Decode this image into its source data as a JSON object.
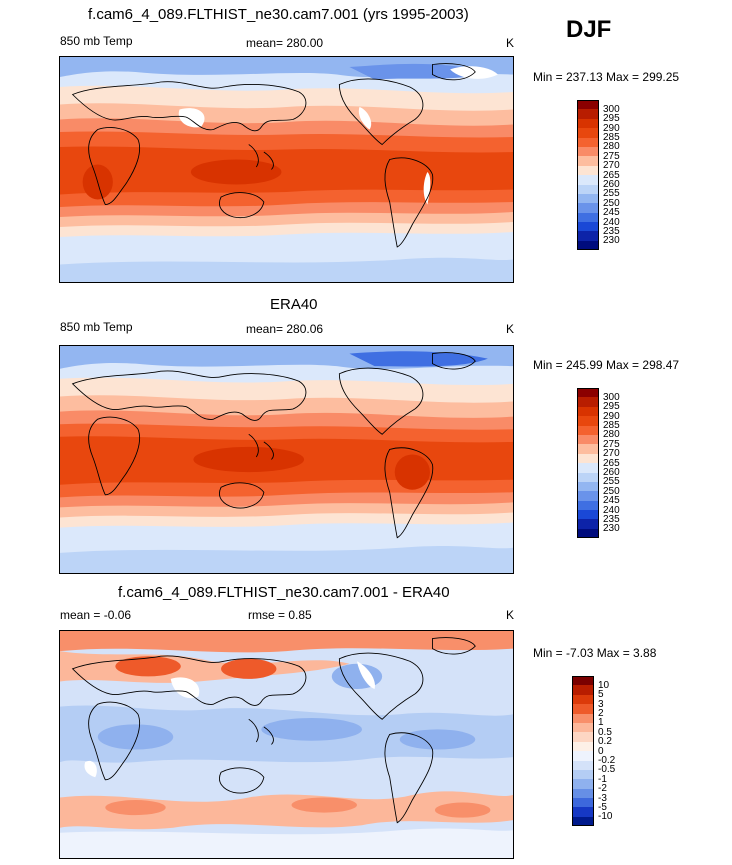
{
  "season": "DJF",
  "panels": [
    {
      "id": "model",
      "title": "f.cam6_4_089.FLTHIST_ne30.cam7.001 (yrs 1995-2003)",
      "left_label": "850 mb Temp",
      "center_label": "mean= 280.00",
      "units": "K",
      "minmax": "Min = 237.13 Max = 299.25",
      "levels": [
        "300",
        "295",
        "290",
        "285",
        "280",
        "275",
        "270",
        "265",
        "260",
        "255",
        "250",
        "245",
        "240",
        "235",
        "230"
      ],
      "colors": [
        "#8b0000",
        "#b81d00",
        "#d83300",
        "#e8470e",
        "#f4622f",
        "#f98b67",
        "#fdbd9f",
        "#fde4d3",
        "#dbe8fb",
        "#bcd4f7",
        "#93b6f1",
        "#6a93ea",
        "#3f6fe2",
        "#1a48d6",
        "#0d23a8",
        "#000c7d"
      ]
    },
    {
      "id": "obs",
      "title": "ERA40",
      "left_label": "850 mb Temp",
      "center_label": "mean= 280.06",
      "units": "K",
      "minmax": "Min = 245.99 Max = 298.47",
      "levels": [
        "300",
        "295",
        "290",
        "285",
        "280",
        "275",
        "270",
        "265",
        "260",
        "255",
        "250",
        "245",
        "240",
        "235",
        "230"
      ],
      "colors": [
        "#8b0000",
        "#b81d00",
        "#d83300",
        "#e8470e",
        "#f4622f",
        "#f98b67",
        "#fdbd9f",
        "#fde4d3",
        "#dbe8fb",
        "#bcd4f7",
        "#93b6f1",
        "#6a93ea",
        "#3f6fe2",
        "#1a48d6",
        "#0d23a8",
        "#000c7d"
      ]
    },
    {
      "id": "diff",
      "title": "f.cam6_4_089.FLTHIST_ne30.cam7.001 - ERA40",
      "left_label": "mean =  -0.06",
      "center_label": "rmse =   0.85",
      "units": "K",
      "minmax": "Min =  -7.03 Max =   3.88",
      "levels": [
        "10",
        "5",
        "3",
        "2",
        "1",
        "0.5",
        "0.2",
        "0",
        "-0.2",
        "-0.5",
        "-1",
        "-2",
        "-3",
        "-5",
        "-10"
      ],
      "colors": [
        "#7a0000",
        "#b81d00",
        "#dc3a0a",
        "#ee5a2a",
        "#f88f6a",
        "#fcb79a",
        "#fdd6c3",
        "#fdf0e7",
        "#eef3fd",
        "#d4e2f9",
        "#b4cdf4",
        "#8fb1ee",
        "#668fe6",
        "#3d68dc",
        "#1638c4",
        "#001a8c"
      ]
    }
  ]
}
